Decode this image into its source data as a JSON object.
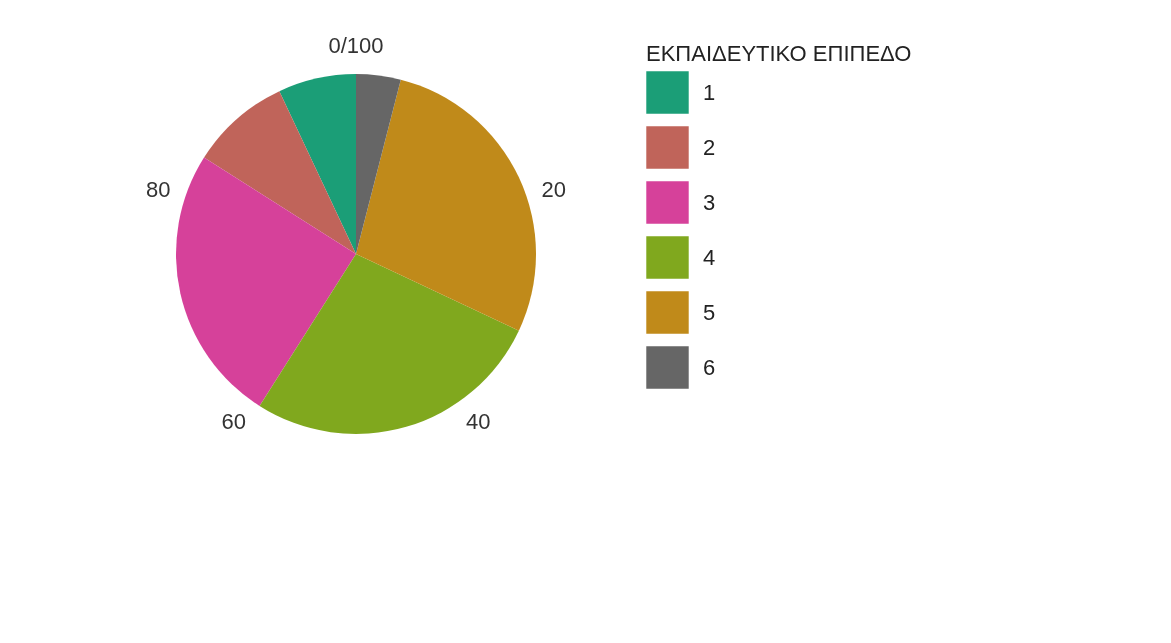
{
  "chart_data": {
    "type": "pie",
    "legend_title": "ΕΚΠΑΙΔΕΥΤΙΚΟ ΕΠΙΠΕΔΟ",
    "legend": "right",
    "categories": [
      "1",
      "2",
      "3",
      "4",
      "5",
      "6"
    ],
    "values": [
      7,
      9,
      25,
      27,
      28,
      4
    ],
    "colors": [
      "#1b9e77",
      "#c0645a",
      "#d6419a",
      "#80a81e",
      "#c08a1a",
      "#666666"
    ],
    "annotations": [
      "0/100",
      "20",
      "40",
      "60",
      "80"
    ]
  }
}
